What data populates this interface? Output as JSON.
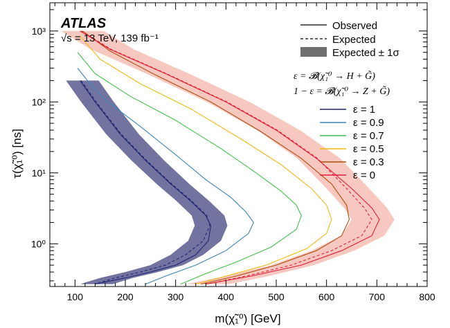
{
  "chart_data": {
    "type": "line",
    "header": {
      "experiment": "ATLAS",
      "energy": "√s = 13 TeV, 139 fb⁻¹"
    },
    "xlabel": "m(χ̃₁⁰) [GeV]",
    "ylabel": "τ(χ̃₁⁰) [ns]",
    "xlim": [
      50,
      800
    ],
    "ylim": [
      0.25,
      2500
    ],
    "yscale": "log",
    "x_ticks": [
      "100",
      "200",
      "300",
      "400",
      "500",
      "600",
      "700",
      "800"
    ],
    "y_ticks": [
      "10⁰",
      "10¹",
      "10²",
      "10³"
    ],
    "legend_styles": [
      {
        "label": "Observed",
        "style": "solid"
      },
      {
        "label": "Expected",
        "style": "dashed"
      },
      {
        "label": "Expected ± 1σ",
        "style": "band"
      }
    ],
    "definitions": [
      "ε = 𝓑(χ̃₁⁰ → H + G̃)",
      "1 − ε = 𝓑(χ̃₁⁰ → Z + G̃)"
    ],
    "band_colors": {
      "eps1": "#5a5a8f",
      "eps0": "#f4b6aa"
    },
    "series": [
      {
        "name": "ε = 1",
        "color": "#1e2672",
        "observed": [
          [
            110,
            200
          ],
          [
            140,
            100
          ],
          [
            190,
            35
          ],
          [
            240,
            15
          ],
          [
            290,
            7
          ],
          [
            330,
            4
          ],
          [
            360,
            2.5
          ],
          [
            370,
            1.8
          ],
          [
            365,
            1.1
          ],
          [
            340,
            0.7
          ],
          [
            300,
            0.5
          ],
          [
            250,
            0.4
          ],
          [
            200,
            0.33
          ],
          [
            140,
            0.27
          ]
        ],
        "expected": [
          [
            112,
            200
          ],
          [
            142,
            100
          ],
          [
            192,
            35
          ],
          [
            242,
            15
          ],
          [
            292,
            7
          ],
          [
            332,
            4
          ],
          [
            362,
            2.5
          ],
          [
            368,
            1.8
          ],
          [
            355,
            1.1
          ],
          [
            320,
            0.7
          ],
          [
            280,
            0.5
          ],
          [
            230,
            0.4
          ],
          [
            180,
            0.33
          ],
          [
            140,
            0.27
          ]
        ]
      },
      {
        "name": "ε = 0.9",
        "color": "#3a84b6",
        "observed": [
          [
            105,
            300
          ],
          [
            130,
            180
          ],
          [
            165,
            100
          ],
          [
            230,
            45
          ],
          [
            300,
            18
          ],
          [
            360,
            8
          ],
          [
            410,
            4.5
          ],
          [
            440,
            2.8
          ],
          [
            455,
            2
          ],
          [
            445,
            1.4
          ],
          [
            400,
            0.8
          ],
          [
            340,
            0.5
          ],
          [
            280,
            0.35
          ],
          [
            240,
            0.27
          ]
        ]
      },
      {
        "name": "ε = 0.7",
        "color": "#3fc24a",
        "observed": [
          [
            105,
            500
          ],
          [
            140,
            250
          ],
          [
            210,
            120
          ],
          [
            300,
            55
          ],
          [
            390,
            22
          ],
          [
            460,
            10
          ],
          [
            510,
            5.5
          ],
          [
            540,
            3.5
          ],
          [
            550,
            2.5
          ],
          [
            540,
            1.6
          ],
          [
            490,
            0.9
          ],
          [
            420,
            0.55
          ],
          [
            360,
            0.38
          ],
          [
            310,
            0.27
          ]
        ]
      },
      {
        "name": "ε = 0.5",
        "color": "#f2b90c",
        "observed": [
          [
            110,
            850
          ],
          [
            150,
            400
          ],
          [
            230,
            180
          ],
          [
            330,
            80
          ],
          [
            430,
            30
          ],
          [
            510,
            13
          ],
          [
            570,
            6
          ],
          [
            600,
            3.5
          ],
          [
            610,
            2.2
          ],
          [
            600,
            1.4
          ],
          [
            560,
            0.85
          ],
          [
            480,
            0.5
          ],
          [
            400,
            0.35
          ],
          [
            340,
            0.27
          ]
        ]
      },
      {
        "name": "ε = 0.3",
        "color": "#b24d0e",
        "observed": [
          [
            115,
            1000
          ],
          [
            170,
            520
          ],
          [
            260,
            240
          ],
          [
            370,
            100
          ],
          [
            470,
            38
          ],
          [
            550,
            16
          ],
          [
            610,
            7
          ],
          [
            640,
            3.5
          ],
          [
            645,
            2.2
          ],
          [
            630,
            1.3
          ],
          [
            580,
            0.8
          ],
          [
            500,
            0.5
          ],
          [
            420,
            0.35
          ],
          [
            350,
            0.27
          ]
        ]
      },
      {
        "name": "ε = 0",
        "color": "#e21e36",
        "observed": [
          [
            110,
            1000
          ],
          [
            170,
            550
          ],
          [
            280,
            250
          ],
          [
            400,
            100
          ],
          [
            500,
            40
          ],
          [
            580,
            16
          ],
          [
            650,
            6
          ],
          [
            690,
            3.2
          ],
          [
            705,
            2.2
          ],
          [
            690,
            1.3
          ],
          [
            630,
            0.8
          ],
          [
            550,
            0.5
          ],
          [
            450,
            0.35
          ],
          [
            360,
            0.27
          ]
        ],
        "expected": [
          [
            112,
            1000
          ],
          [
            172,
            550
          ],
          [
            282,
            250
          ],
          [
            402,
            100
          ],
          [
            502,
            40
          ],
          [
            582,
            16
          ],
          [
            640,
            6
          ],
          [
            675,
            3.2
          ],
          [
            690,
            2.2
          ],
          [
            670,
            1.3
          ],
          [
            610,
            0.8
          ],
          [
            530,
            0.5
          ],
          [
            440,
            0.35
          ],
          [
            360,
            0.27
          ]
        ]
      }
    ]
  }
}
